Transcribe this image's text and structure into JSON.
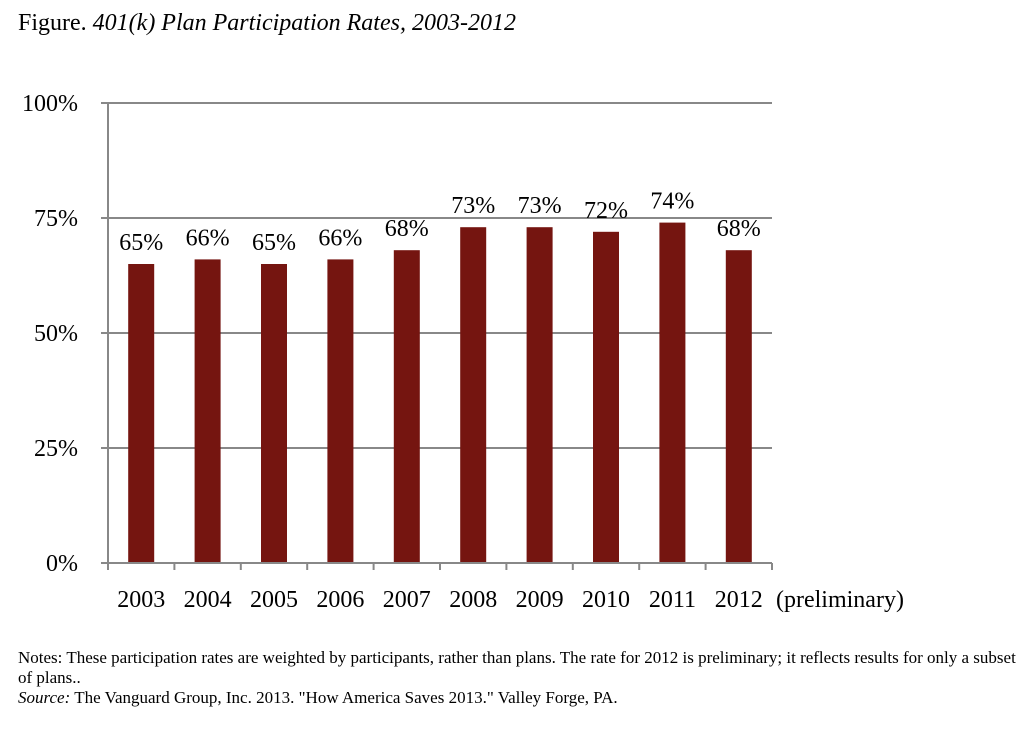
{
  "title": {
    "prefix": "Figure.",
    "main": "401(k) Plan Participation Rates, 2003-2012"
  },
  "colors": {
    "bar": "#751510",
    "grid": "#888888",
    "axis": "#888888"
  },
  "chart_data": {
    "type": "bar",
    "title": "401(k) Plan Participation Rates, 2003-2012",
    "categories": [
      "2003",
      "2004",
      "2005",
      "2006",
      "2007",
      "2008",
      "2009",
      "2010",
      "2011",
      "2012"
    ],
    "category_suffix": "(preliminary)",
    "values": [
      65,
      66,
      65,
      66,
      68,
      73,
      73,
      72,
      74,
      68
    ],
    "data_labels": [
      "65%",
      "66%",
      "65%",
      "66%",
      "68%",
      "73%",
      "73%",
      "72%",
      "74%",
      "68%"
    ],
    "ylim": [
      0,
      100
    ],
    "yticks": [
      0,
      25,
      50,
      75,
      100
    ],
    "ytick_labels": [
      "0%",
      "25%",
      "50%",
      "75%",
      "100%"
    ],
    "grid": true,
    "legend": "none"
  },
  "notes": {
    "line1": "Notes: These participation rates are weighted by participants, rather than plans.  The rate for 2012 is preliminary; it reflects results for only a subset of plans..",
    "source_label": "Source:",
    "source_text": " The Vanguard Group, Inc. 2013. \"How America Saves 2013.\" Valley Forge, PA."
  }
}
